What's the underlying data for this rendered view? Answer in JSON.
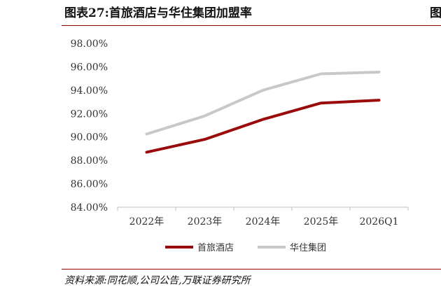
{
  "figure": {
    "title": "图表27:首旅酒店与华住集团加盟率",
    "corner_glyph": "图",
    "source": "资料来源:同花顺,公司公告,万联证券研究所"
  },
  "chart_data": {
    "type": "line",
    "categories": [
      "2022年",
      "2023年",
      "2024年",
      "2025年",
      "2026Q1"
    ],
    "series": [
      {
        "name": "首旅酒店",
        "color": "#9b0a0a",
        "values": [
          88.7,
          89.8,
          91.5,
          92.9,
          93.15
        ]
      },
      {
        "name": "华住集团",
        "color": "#c8c8c8",
        "values": [
          90.25,
          91.8,
          94.0,
          95.4,
          95.55
        ]
      }
    ],
    "ylim": [
      84,
      98
    ],
    "yticks": [
      "84.00%",
      "86.00%",
      "88.00%",
      "90.00%",
      "92.00%",
      "94.00%",
      "96.00%",
      "98.00%"
    ],
    "grid": false,
    "legend": "bottom"
  }
}
